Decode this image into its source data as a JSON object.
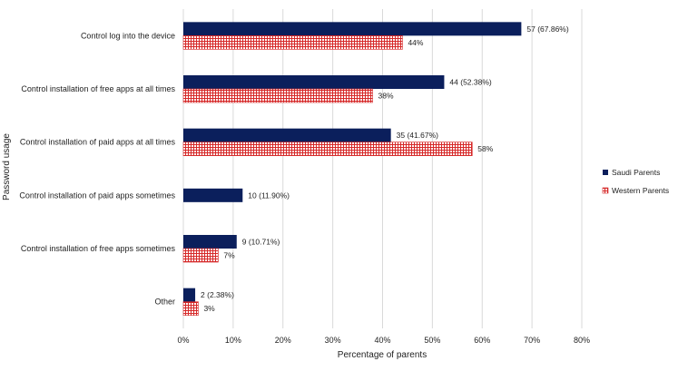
{
  "chart_data": {
    "type": "bar",
    "orientation": "horizontal",
    "title": "",
    "xlabel": "Percentage of parents",
    "ylabel": "Password usage",
    "xlim": [
      0,
      80
    ],
    "x_ticks": [
      "0%",
      "10%",
      "20%",
      "30%",
      "40%",
      "50%",
      "60%",
      "70%",
      "80%"
    ],
    "grid": "vertical",
    "legend_position": "right",
    "categories": [
      "Control log into the device",
      "Control installation of free apps at all times",
      "Control installation of paid apps at all times",
      "Control installation of paid apps sometimes",
      "Control installation of free apps sometimes",
      "Other"
    ],
    "series": [
      {
        "name": "Saudi Parents",
        "color": "#0b1f5c",
        "pattern": "solid",
        "values": [
          67.86,
          52.38,
          41.67,
          11.9,
          10.71,
          2.38
        ],
        "labels": [
          "57 (67.86%)",
          "44 (52.38%)",
          "35 (41.67%)",
          "10 (11.90%)",
          "9 (10.71%)",
          "2 (2.38%)"
        ]
      },
      {
        "name": "Western Parents",
        "color": "#d62828",
        "pattern": "grid",
        "values": [
          44,
          38,
          58,
          null,
          7,
          3
        ],
        "labels": [
          "44%",
          "38%",
          "58%",
          "",
          "7%",
          "3%"
        ]
      }
    ]
  }
}
